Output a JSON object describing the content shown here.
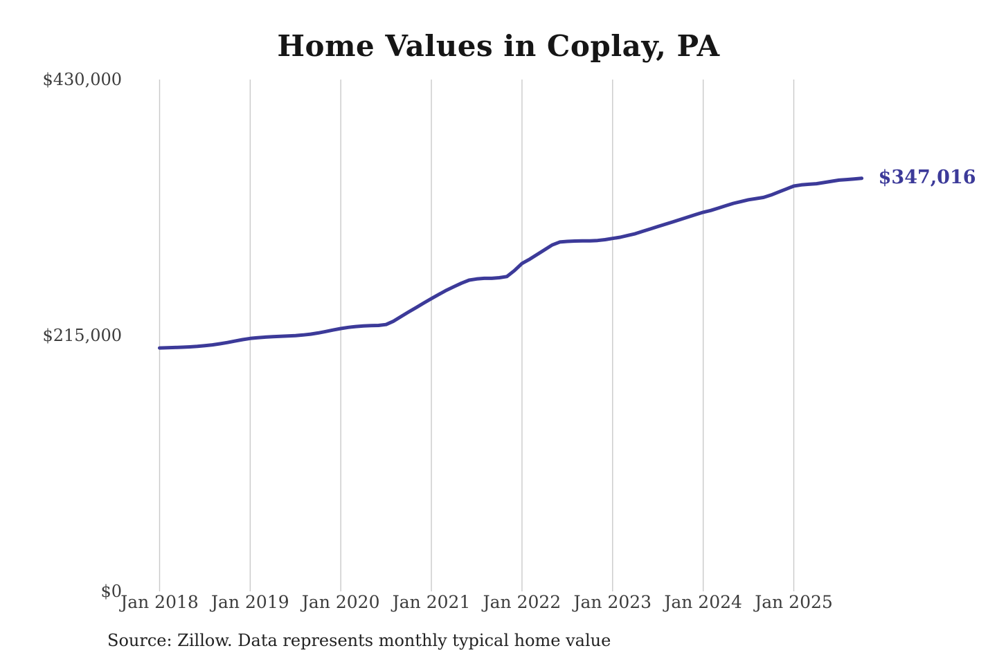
{
  "title": "Home Values in Coplay, PA",
  "end_value_label": "$347,016",
  "source_note": "Source: Zillow. Data represents monthly typical home value",
  "colors": {
    "line": "#3c3a99",
    "gridline": "#c9c9c9",
    "tick_text": "#3d3d3d",
    "title_text": "#161616",
    "end_label_text": "#3c3a99",
    "background": "#ffffff"
  },
  "chart_data": {
    "type": "line",
    "title": "Home Values in Coplay, PA",
    "xlabel": "",
    "ylabel": "",
    "ylim": [
      0,
      430000
    ],
    "y_ticks": [
      0,
      215000,
      430000
    ],
    "y_tick_labels": [
      "$0",
      "$215,000",
      "$430,000"
    ],
    "x_tick_month_indices": [
      0,
      12,
      24,
      36,
      48,
      60,
      72,
      84
    ],
    "x_tick_labels": [
      "Jan 2018",
      "Jan 2019",
      "Jan 2020",
      "Jan 2021",
      "Jan 2022",
      "Jan 2023",
      "Jan 2024",
      "Jan 2025"
    ],
    "grid": "vertical-only",
    "legend_position": "none",
    "series": [
      {
        "name": "Monthly typical home value",
        "x_start": "2018-01",
        "x_step_months": 1,
        "x_end": "2025-10",
        "final_value": 347016,
        "values": [
          204500,
          204700,
          204900,
          205100,
          205400,
          205800,
          206400,
          207100,
          208000,
          209100,
          210300,
          211500,
          212500,
          213100,
          213600,
          214000,
          214300,
          214600,
          214900,
          215400,
          216100,
          217100,
          218300,
          219600,
          220800,
          221800,
          222500,
          223000,
          223300,
          223400,
          224200,
          227000,
          231000,
          234800,
          238500,
          242300,
          246000,
          249500,
          253000,
          256000,
          259000,
          261500,
          262500,
          263000,
          263000,
          263500,
          264500,
          269500,
          275500,
          279000,
          283000,
          287000,
          291000,
          293500,
          294000,
          294300,
          294500,
          294500,
          294800,
          295500,
          296500,
          297500,
          299000,
          300500,
          302500,
          304500,
          306500,
          308500,
          310500,
          312500,
          314500,
          316500,
          318500,
          320000,
          322000,
          324000,
          326000,
          327500,
          329000,
          330000,
          331000,
          333000,
          335500,
          338000,
          340500,
          341500,
          342000,
          342500,
          343500,
          344500,
          345500,
          346000,
          346500,
          347016
        ]
      }
    ]
  }
}
